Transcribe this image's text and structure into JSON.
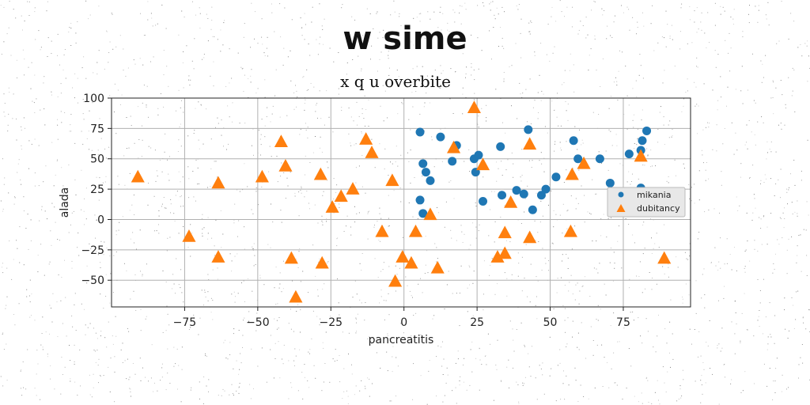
{
  "title": "w sime",
  "chart_data": {
    "type": "scatter",
    "subtitle": "x q u overbite",
    "xlabel": "pancreatitis",
    "ylabel": "alada",
    "xlim": [
      -100,
      98
    ],
    "ylim": [
      -72,
      100
    ],
    "xticks": [
      -75,
      -50,
      -25,
      0,
      25,
      50,
      75
    ],
    "yticks": [
      -50,
      -25,
      0,
      25,
      50,
      75,
      100
    ],
    "grid": true,
    "legend_position": "center-right",
    "series": [
      {
        "name": "mikania",
        "marker": "circle",
        "color": "#1f77b4",
        "points": [
          [
            5.5,
            72
          ],
          [
            12.5,
            68
          ],
          [
            18,
            61
          ],
          [
            16.5,
            48
          ],
          [
            6.5,
            46
          ],
          [
            7.5,
            39
          ],
          [
            9,
            32
          ],
          [
            5.5,
            16
          ],
          [
            6.5,
            5
          ],
          [
            24,
            50
          ],
          [
            25.5,
            53
          ],
          [
            24.5,
            39
          ],
          [
            27,
            15
          ],
          [
            33,
            60
          ],
          [
            33.5,
            20
          ],
          [
            38.5,
            24
          ],
          [
            41,
            21
          ],
          [
            42.5,
            74
          ],
          [
            44,
            8
          ],
          [
            47,
            20
          ],
          [
            48.5,
            25
          ],
          [
            52,
            35
          ],
          [
            58,
            65
          ],
          [
            59.5,
            50
          ],
          [
            67,
            50
          ],
          [
            70.5,
            30
          ],
          [
            77,
            54
          ],
          [
            81,
            57
          ],
          [
            81.5,
            65
          ],
          [
            83,
            73
          ],
          [
            81,
            26
          ]
        ]
      },
      {
        "name": "dubitancy",
        "marker": "triangle",
        "color": "#ff7f0e",
        "points": [
          [
            -91,
            35
          ],
          [
            -73.5,
            -14
          ],
          [
            -63.5,
            30
          ],
          [
            -63.5,
            -31
          ],
          [
            -48.5,
            35
          ],
          [
            -42,
            64
          ],
          [
            -40.5,
            44
          ],
          [
            -38.5,
            -32
          ],
          [
            -37,
            -64
          ],
          [
            -28.5,
            37
          ],
          [
            -28,
            -36
          ],
          [
            -24.5,
            10
          ],
          [
            -21.5,
            19
          ],
          [
            -17.5,
            25
          ],
          [
            -13,
            66
          ],
          [
            -11,
            55
          ],
          [
            -7.5,
            -10
          ],
          [
            -4,
            32
          ],
          [
            -3,
            -51
          ],
          [
            -0.5,
            -31
          ],
          [
            2.5,
            -36
          ],
          [
            4,
            -10
          ],
          [
            9,
            4
          ],
          [
            11.5,
            -40
          ],
          [
            17,
            59
          ],
          [
            24,
            92
          ],
          [
            27,
            45
          ],
          [
            32,
            -31
          ],
          [
            34.5,
            -28
          ],
          [
            34.5,
            -11
          ],
          [
            36.5,
            14
          ],
          [
            43,
            62
          ],
          [
            43,
            -15
          ],
          [
            57,
            -10
          ],
          [
            57.5,
            37
          ],
          [
            61.5,
            46
          ],
          [
            81,
            52
          ],
          [
            89,
            -32
          ]
        ]
      }
    ]
  }
}
